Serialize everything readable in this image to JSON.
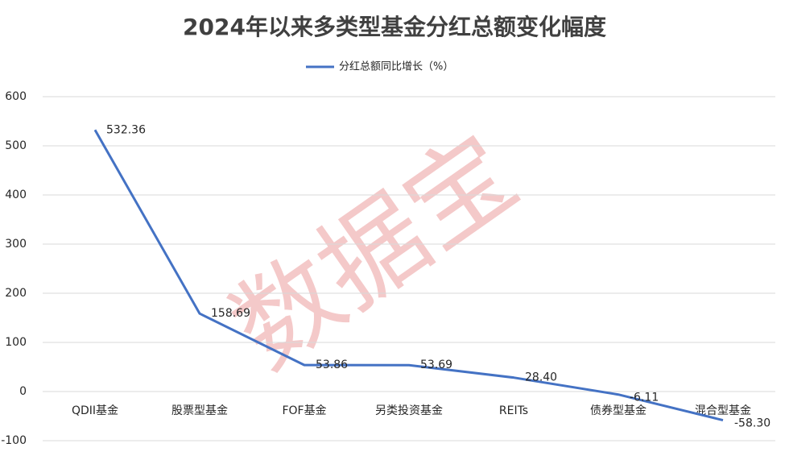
{
  "chart_data": {
    "type": "line",
    "title": "2024年以来多类型基金分红总额变化幅度",
    "watermark": "数据宝",
    "categories": [
      "QDII基金",
      "股票型基金",
      "FOF基金",
      "另类投资基金",
      "REITs",
      "债券型基金",
      "混合型基金"
    ],
    "series": [
      {
        "name": "分红总额同比增长（%）",
        "color": "#4472c4",
        "values": [
          532.36,
          158.69,
          53.86,
          53.69,
          28.4,
          -6.11,
          -58.3
        ],
        "value_labels": [
          "532.36",
          "158.69",
          "53.86",
          "53.69",
          "28.40",
          "-6.11",
          "-58.30"
        ]
      }
    ],
    "ylim": [
      -100,
      600
    ],
    "yticks": [
      -100,
      0,
      100,
      200,
      300,
      400,
      500,
      600
    ],
    "grid": true,
    "legend": "top"
  }
}
